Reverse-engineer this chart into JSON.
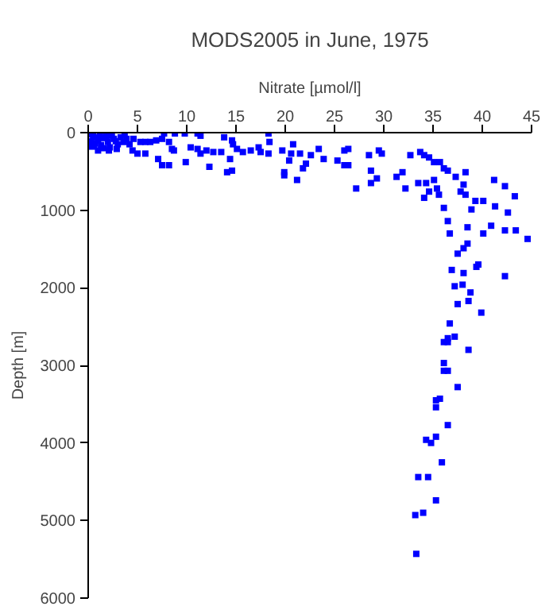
{
  "chart_data": {
    "type": "scatter",
    "title": "MODS2005 in June, 1975",
    "xlabel": "Nitrate [µmol/l]",
    "ylabel": "Depth [m]",
    "xlim": [
      0,
      45
    ],
    "ylim": [
      6000,
      0
    ],
    "xticks": [
      0,
      5,
      10,
      15,
      20,
      25,
      30,
      35,
      40,
      45
    ],
    "yticks": [
      0,
      1000,
      2000,
      3000,
      4000,
      5000,
      6000
    ],
    "grid": false,
    "marker": "square",
    "series": [
      {
        "color": "#0000ff",
        "x": [
          0.2,
          0.5,
          0.8,
          1.2,
          1.5,
          0.3,
          0.7,
          1.0,
          1.8,
          2.0,
          0.4,
          1.3,
          2.4,
          1.0,
          1.6,
          2.8,
          3.3,
          3.6,
          3.7,
          3.9,
          4.2,
          3.0,
          2.6,
          2.2,
          4.6,
          5.3,
          5.8,
          6.3,
          6.9,
          4.5,
          5.0,
          5.8,
          2.9,
          2.1,
          0.6,
          7.7,
          8.8,
          9.8,
          11.1,
          11.4,
          7.5,
          8.2,
          7.1,
          7.5,
          8.2,
          8.5,
          8.7,
          9.9,
          10.4,
          11.1,
          11.4,
          12.0,
          12.3,
          12.7,
          13.5,
          13.8,
          14.6,
          14.7,
          14.4,
          14.1,
          14.6,
          15.1,
          15.7,
          16.5,
          17.3,
          17.5,
          18.3,
          18.4,
          18.3,
          19.7,
          19.9,
          19.9,
          20.4,
          20.8,
          20.6,
          21.5,
          22.6,
          23.4,
          23.9,
          22.1,
          21.8,
          21.2,
          26.0,
          26.4,
          25.3,
          26.0,
          26.4,
          28.5,
          29.5,
          29.8,
          28.7,
          29.3,
          27.2,
          28.7,
          31.9,
          31.3,
          32.7,
          33.7,
          34.1,
          34.6,
          35.1,
          35.7,
          36.1,
          36.5,
          37.3,
          38.3,
          33.5,
          34.3,
          32.2,
          35.1,
          34.6,
          35.4,
          35.6,
          34.1,
          36.1,
          36.5,
          36.7,
          37.8,
          38.3,
          38.9,
          39.3,
          40.1,
          41.2,
          42.3,
          43.3,
          41.3,
          42.6,
          40.9,
          42.3,
          43.4,
          44.6,
          38.5,
          38.5,
          40.1,
          38.1,
          38.1,
          37.5,
          39.6,
          39.4,
          36.9,
          38.1,
          42.3,
          37.2,
          38.0,
          38.8,
          37.5,
          38.6,
          39.9,
          36.7,
          36.5,
          37.2,
          36.5,
          36.1,
          38.6,
          36.1,
          36.1,
          36.5,
          37.5,
          35.7,
          35.3,
          35.3,
          36.5,
          34.3,
          34.8,
          35.3,
          35.9,
          33.5,
          34.5,
          35.3,
          33.2,
          34.0,
          33.3
        ],
        "values": [
          20,
          40,
          60,
          30,
          70,
          110,
          140,
          100,
          50,
          120,
          180,
          160,
          40,
          230,
          200,
          110,
          60,
          120,
          20,
          80,
          150,
          150,
          80,
          190,
          80,
          120,
          120,
          120,
          100,
          230,
          270,
          270,
          210,
          230,
          170,
          10,
          10,
          10,
          10,
          40,
          80,
          120,
          340,
          420,
          420,
          210,
          230,
          380,
          190,
          210,
          270,
          230,
          440,
          250,
          250,
          60,
          100,
          150,
          340,
          510,
          490,
          210,
          250,
          230,
          190,
          250,
          10,
          120,
          270,
          230,
          510,
          550,
          360,
          150,
          270,
          270,
          290,
          210,
          340,
          400,
          460,
          610,
          230,
          210,
          360,
          420,
          420,
          290,
          230,
          270,
          490,
          590,
          720,
          650,
          510,
          570,
          290,
          250,
          290,
          320,
          380,
          380,
          460,
          490,
          570,
          510,
          650,
          650,
          720,
          610,
          760,
          720,
          800,
          840,
          970,
          1140,
          1300,
          760,
          800,
          990,
          880,
          880,
          610,
          690,
          820,
          950,
          1030,
          1200,
          1260,
          1260,
          1370,
          1220,
          1430,
          1300,
          670,
          1490,
          1560,
          1700,
          1730,
          1770,
          1810,
          1850,
          1980,
          1960,
          2060,
          2210,
          2170,
          2320,
          2460,
          2650,
          2630,
          2700,
          2700,
          2800,
          2970,
          3070,
          3070,
          3280,
          3430,
          3450,
          3540,
          3770,
          3960,
          4000,
          3920,
          4250,
          4440,
          4440,
          4740,
          4930,
          4900,
          5430
        ]
      }
    ]
  }
}
